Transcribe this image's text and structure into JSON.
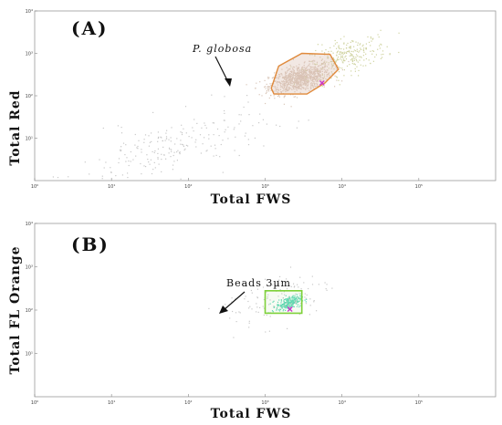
{
  "chart_data": [
    {
      "type": "scatter",
      "panel_label": "(A)",
      "xlabel": "Total FWS",
      "ylabel": "Total Red",
      "x_scale": "log",
      "y_scale": "log",
      "xlim": [
        1,
        1000000
      ],
      "ylim": [
        1,
        10000
      ],
      "x_ticks": [
        {
          "value": 1,
          "label": "10⁰"
        },
        {
          "value": 10,
          "label": "10¹"
        },
        {
          "value": 100,
          "label": "10²"
        },
        {
          "value": 1000,
          "label": "10³"
        },
        {
          "value": 10000,
          "label": "10⁴"
        },
        {
          "value": 100000,
          "label": "10⁵"
        }
      ],
      "y_ticks": [
        {
          "value": 10,
          "label": "10¹"
        },
        {
          "value": 100,
          "label": "10²"
        },
        {
          "value": 1000,
          "label": "10³"
        },
        {
          "value": 10000,
          "label": "10⁴"
        }
      ],
      "grid": false,
      "clusters": [
        {
          "name": "P. globosa population",
          "center": [
            2800,
            260
          ],
          "spread_log": [
            0.2,
            0.15
          ],
          "n": 900,
          "color": "#d9c6b8"
        },
        {
          "name": "upper tail",
          "center": [
            12000,
            900
          ],
          "spread_log": [
            0.25,
            0.2
          ],
          "n": 260,
          "color": "#cfd3a0"
        },
        {
          "name": "lower tail",
          "center": [
            60,
            6
          ],
          "spread_log": [
            0.6,
            0.35
          ],
          "n": 220,
          "color": "#c8c8c8"
        }
      ],
      "gate": {
        "label": "P. globosa",
        "color": "#e08a3c",
        "vertices": [
          [
            1200,
            150
          ],
          [
            1500,
            500
          ],
          [
            3000,
            1000
          ],
          [
            7000,
            950
          ],
          [
            9000,
            420
          ],
          [
            6000,
            200
          ],
          [
            3500,
            110
          ],
          [
            1300,
            110
          ]
        ]
      },
      "centroid_marker": {
        "x": 5500,
        "y": 200,
        "color": "#cc33cc"
      }
    },
    {
      "type": "scatter",
      "panel_label": "(B)",
      "xlabel": "Total FWS",
      "ylabel": "Total FL Orange",
      "x_scale": "log",
      "y_scale": "log",
      "xlim": [
        1,
        1000000
      ],
      "ylim": [
        1,
        10000
      ],
      "x_ticks": [
        {
          "value": 1,
          "label": "10⁰"
        },
        {
          "value": 10,
          "label": "10¹"
        },
        {
          "value": 100,
          "label": "10²"
        },
        {
          "value": 1000,
          "label": "10³"
        },
        {
          "value": 10000,
          "label": "10⁴"
        },
        {
          "value": 100000,
          "label": "10⁵"
        }
      ],
      "y_ticks": [
        {
          "value": 10,
          "label": "10¹"
        },
        {
          "value": 100,
          "label": "10²"
        },
        {
          "value": 1000,
          "label": "10³"
        },
        {
          "value": 10000,
          "label": "10⁴"
        }
      ],
      "grid": false,
      "clusters": [
        {
          "name": "Beads 3µm",
          "center": [
            2000,
            150
          ],
          "spread_log": [
            0.08,
            0.07
          ],
          "n": 260,
          "color": "#4fd6b0"
        },
        {
          "name": "scatter background",
          "center": [
            1500,
            200
          ],
          "spread_log": [
            0.35,
            0.3
          ],
          "n": 120,
          "color": "#c8c8c8"
        }
      ],
      "gate": {
        "label": "Beads 3µm",
        "color": "#7fd13a",
        "vertices": [
          [
            1000,
            85
          ],
          [
            3000,
            85
          ],
          [
            3000,
            280
          ],
          [
            1000,
            280
          ]
        ]
      },
      "centroid_marker": {
        "x": 2100,
        "y": 105,
        "color": "#cc33cc"
      }
    }
  ],
  "annotations": {
    "a_gate_label": "P. globosa",
    "b_gate_label": "Beads 3µm"
  }
}
